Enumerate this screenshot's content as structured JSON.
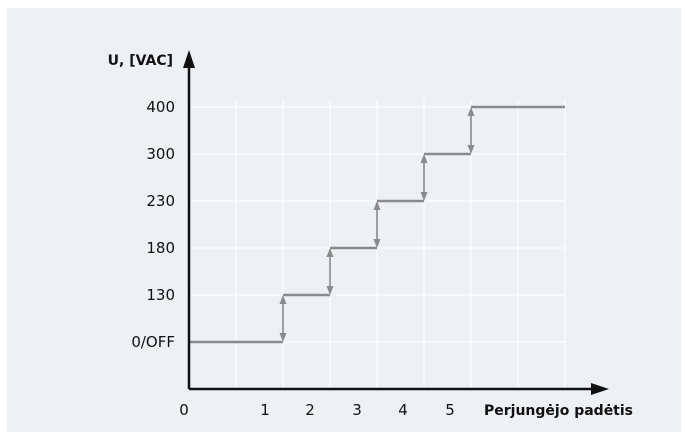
{
  "chart_data": {
    "type": "line",
    "step": true,
    "ylabel": "U, [VAC]",
    "xlabel": "Perjungėjo padėtis",
    "x_ticks": [
      "0",
      "1",
      "2",
      "3",
      "4",
      "5"
    ],
    "y_ticks": [
      "0/OFF",
      "130",
      "180",
      "230",
      "300",
      "400"
    ],
    "segments": [
      {
        "from": 0,
        "to": 2,
        "level": "0/OFF"
      },
      {
        "from": 2,
        "to": 3,
        "level": "130"
      },
      {
        "from": 3,
        "to": 4,
        "level": "180"
      },
      {
        "from": 4,
        "to": 5,
        "level": "230"
      },
      {
        "from": 5,
        "to": 6,
        "level": "300"
      },
      {
        "from": 6,
        "to": 8,
        "level": "400"
      }
    ],
    "transitions": [
      {
        "at": 2,
        "from": "0/OFF",
        "to": "130",
        "double_arrow": true
      },
      {
        "at": 3,
        "from": "130",
        "to": "180",
        "double_arrow": true
      },
      {
        "at": 4,
        "from": "180",
        "to": "230",
        "double_arrow": true
      },
      {
        "at": 5,
        "from": "230",
        "to": "300",
        "double_arrow": true
      },
      {
        "at": 6,
        "from": "300",
        "to": "400",
        "double_arrow": true
      }
    ],
    "grid": true,
    "colors": {
      "line": "#8a8a8a",
      "axis": "#111111",
      "grid": "#ffffff",
      "background": "#eef1f3"
    }
  }
}
